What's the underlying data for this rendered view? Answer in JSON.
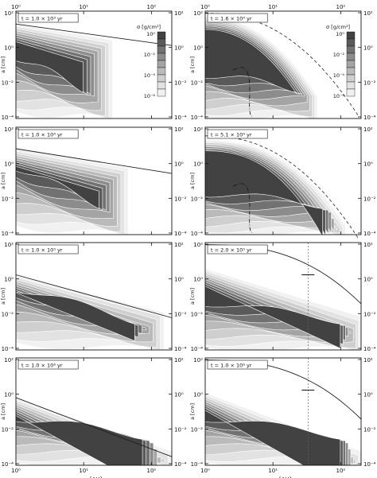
{
  "figure": {
    "x_axis_label": "r [AU]",
    "y_axis_label": "a [cm]",
    "colorbar_label": "σ [g/cm²]",
    "colorbar_ticks": [
      "10⁰",
      "10⁻²",
      "10⁻⁴",
      "10⁻⁶"
    ]
  },
  "chart_data": [
    {
      "type": "heatmap",
      "panel": "left-1",
      "label": "t = 1.0 × 10³ yr",
      "xscale": "log",
      "yscale": "log",
      "xlim": [
        1,
        200
      ],
      "ylim": [
        0.0001,
        200
      ],
      "x_ticks": [
        "10⁰",
        "10¹",
        "10²"
      ],
      "y_ticks": [
        "10²",
        "10⁰",
        "10⁻²",
        "10⁻⁴"
      ]
    },
    {
      "type": "heatmap",
      "panel": "right-1",
      "label": "t = 1.6 × 10⁴ yr",
      "xscale": "log",
      "yscale": "log",
      "xlim": [
        1,
        200
      ],
      "ylim": [
        0.0001,
        200
      ],
      "x_ticks": [
        "10⁰",
        "10¹",
        "10²"
      ],
      "y_ticks": [
        "10²",
        "10⁰",
        "10⁻²",
        "10⁻⁴"
      ]
    },
    {
      "type": "heatmap",
      "panel": "left-2",
      "label": "t = 1.0 × 10⁴ yr",
      "xscale": "log",
      "yscale": "log",
      "xlim": [
        1,
        200
      ],
      "ylim": [
        0.0001,
        200
      ],
      "y_ticks": [
        "10²",
        "10⁰",
        "10⁻²",
        "10⁻⁴"
      ]
    },
    {
      "type": "heatmap",
      "panel": "right-2",
      "label": "t = 5.1 × 10⁴ yr",
      "xscale": "log",
      "yscale": "log",
      "xlim": [
        1,
        200
      ],
      "ylim": [
        0.0001,
        200
      ],
      "y_ticks": [
        "10²",
        "10⁰",
        "10⁻²",
        "10⁻⁴"
      ]
    },
    {
      "type": "heatmap",
      "panel": "left-3",
      "label": "t = 1.0 × 10⁵ yr",
      "xscale": "log",
      "yscale": "log",
      "xlim": [
        1,
        200
      ],
      "ylim": [
        0.0001,
        200
      ],
      "y_ticks": [
        "10²",
        "10⁰",
        "10⁻²",
        "10⁻⁴"
      ]
    },
    {
      "type": "heatmap",
      "panel": "right-3",
      "label": "t = 2.0 × 10⁵ yr",
      "xscale": "log",
      "yscale": "log",
      "xlim": [
        1,
        200
      ],
      "ylim": [
        0.0001,
        200
      ],
      "y_ticks": [
        "10²",
        "10⁰",
        "10⁻²",
        "10⁻⁴"
      ]
    },
    {
      "type": "heatmap",
      "panel": "left-4",
      "label": "t = 1.0 × 10⁶ yr",
      "xscale": "log",
      "yscale": "log",
      "xlim": [
        1,
        200
      ],
      "ylim": [
        0.0001,
        200
      ],
      "x_ticks": [
        "10⁰",
        "10¹",
        "10²"
      ],
      "y_ticks": [
        "10²",
        "10⁰",
        "10⁻²",
        "10⁻⁴"
      ]
    },
    {
      "type": "heatmap",
      "panel": "right-4",
      "label": "t = 1.0 × 10⁶ yr",
      "xscale": "log",
      "yscale": "log",
      "xlim": [
        1,
        200
      ],
      "ylim": [
        0.0001,
        200
      ],
      "x_ticks": [
        "10⁰",
        "10¹",
        "10²"
      ],
      "y_ticks": [
        "10²",
        "10⁰",
        "10⁻²",
        "10⁻⁴"
      ]
    }
  ]
}
